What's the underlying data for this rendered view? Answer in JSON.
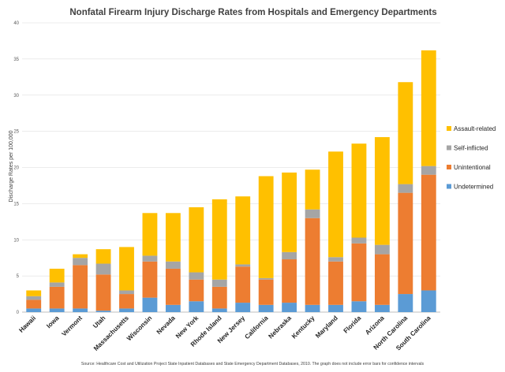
{
  "colors": {
    "Undetermined": "#5B9BD5",
    "Unintentional": "#ED7D31",
    "Self-inflicted": "#A5A5A5",
    "Assault-related": "#FFC000",
    "grid": "#d9d9d9",
    "axis": "#bfbfbf"
  },
  "chart_data": {
    "type": "bar",
    "stacked": true,
    "title": "Nonfatal Firearm Injury Discharge Rates from Hospitals and Emergency Departments",
    "ylabel": "Discharge Rates per 100,000",
    "xlabel": "",
    "ylim": [
      0,
      40
    ],
    "yticks": [
      0,
      5,
      10,
      15,
      20,
      25,
      30,
      35,
      40
    ],
    "grid": true,
    "legend_position": "right",
    "categories": [
      "Hawaii",
      "Iowa",
      "Vermont",
      "Utah",
      "Massachusetts",
      "Wisconsin",
      "Nevada",
      "New York",
      "Rhode Island",
      "New Jersey",
      "California",
      "Nebraska",
      "Kentucky",
      "Maryland",
      "Florida",
      "Arizona",
      "North Carolina",
      "South Carolina"
    ],
    "series": [
      {
        "name": "Undetermined",
        "values": [
          0.5,
          0.5,
          0.5,
          0.2,
          0.5,
          2.0,
          1.0,
          1.5,
          0.5,
          1.3,
          1.0,
          1.3,
          1.0,
          1.0,
          1.5,
          1.0,
          2.5,
          3.0
        ]
      },
      {
        "name": "Unintentional",
        "values": [
          1.2,
          3.0,
          6.0,
          5.0,
          2.0,
          5.0,
          5.0,
          3.0,
          3.0,
          5.0,
          3.5,
          6.0,
          12.0,
          6.0,
          8.0,
          7.0,
          14.0,
          16.0
        ]
      },
      {
        "name": "Self-inflicted",
        "values": [
          0.5,
          0.6,
          1.0,
          1.5,
          0.5,
          0.8,
          1.0,
          1.0,
          1.0,
          0.3,
          0.2,
          1.0,
          1.2,
          0.6,
          0.8,
          1.3,
          1.2,
          1.2
        ]
      },
      {
        "name": "Assault-related",
        "values": [
          0.8,
          1.9,
          0.5,
          2.0,
          6.0,
          5.9,
          6.7,
          9.0,
          11.1,
          9.4,
          14.1,
          11.0,
          5.5,
          14.6,
          13.0,
          14.9,
          14.1,
          16.0
        ]
      }
    ],
    "legend_order": [
      "Assault-related",
      "Self-inflicted",
      "Unintentional",
      "Undetermined"
    ],
    "source": "Source:  Healthcare  Cost  and  Utilization  Project  State Inpatient  Databases and State Emergency  Department  Databases, 2010.  The graph does  not include  error  bars for confidence  intervals"
  }
}
